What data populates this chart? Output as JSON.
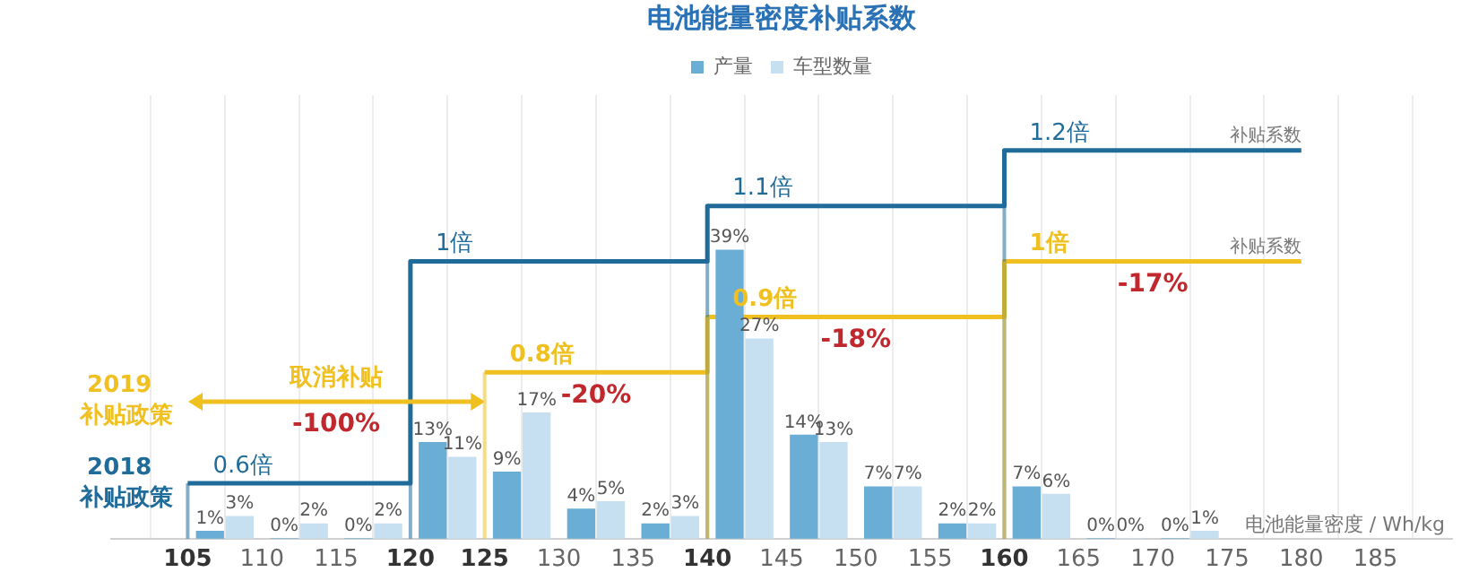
{
  "chart_data": {
    "type": "bar",
    "title": "电池能量密度补贴系数",
    "xlabel": "电池能量密度 / Wh/kg",
    "xlim": [
      102.5,
      187.5
    ],
    "xticks": [
      105,
      110,
      115,
      120,
      125,
      130,
      135,
      140,
      145,
      150,
      155,
      160,
      165,
      170,
      175,
      180,
      185
    ],
    "grid": "x",
    "legend": "top",
    "series": [
      {
        "name": "产量",
        "color": "#6aaed6",
        "x": [
          106.5,
          111.5,
          116.5,
          121.5,
          126.5,
          131.5,
          136.5,
          141.5,
          146.5,
          151.5,
          156.5,
          161.5,
          166.5,
          171.5
        ],
        "values": [
          1,
          0,
          0,
          13,
          9,
          4,
          2,
          39,
          14,
          7,
          2,
          7,
          0,
          0
        ],
        "value_labels": [
          "1%",
          "0%",
          "0%",
          "13%",
          "9%",
          "4%",
          "2%",
          "39%",
          "14%",
          "7%",
          "2%",
          "7%",
          "0%",
          "0%"
        ]
      },
      {
        "name": "车型数量",
        "color": "#c6e0f1",
        "x": [
          108.5,
          113.5,
          118.5,
          123.5,
          128.5,
          133.5,
          138.5,
          143.5,
          148.5,
          153.5,
          158.5,
          163.5,
          168.5,
          173.5
        ],
        "values": [
          3,
          2,
          2,
          11,
          17,
          5,
          3,
          27,
          13,
          7,
          2,
          6,
          0,
          1
        ],
        "value_labels": [
          "3%",
          "2%",
          "2%",
          "11%",
          "17%",
          "5%",
          "3%",
          "27%",
          "13%",
          "7%",
          "2%",
          "6%",
          "0%",
          "1%"
        ]
      },
      {
        "name": "2018 补贴政策",
        "type": "step",
        "axis": "y2",
        "color": "#1f6b9a",
        "x": [
          105,
          120,
          140,
          160,
          180
        ],
        "values": [
          0.6,
          1,
          1.1,
          1.2,
          1.2
        ],
        "value_labels": [
          "0.6倍",
          "1倍",
          "1.1倍",
          "1.2倍",
          null
        ]
      },
      {
        "name": "2019 补贴政策",
        "type": "step",
        "axis": "y2",
        "color": "#f0c020",
        "x": [
          125,
          140,
          160,
          180
        ],
        "values": [
          0.8,
          0.9,
          1,
          1
        ],
        "value_labels": [
          "0.8倍",
          "0.9倍",
          "1倍",
          null
        ]
      }
    ],
    "annotations": [
      "取消补贴",
      "-100%",
      "-20%",
      "-18%",
      "-17%",
      "补贴系数",
      "补贴系数"
    ]
  }
}
